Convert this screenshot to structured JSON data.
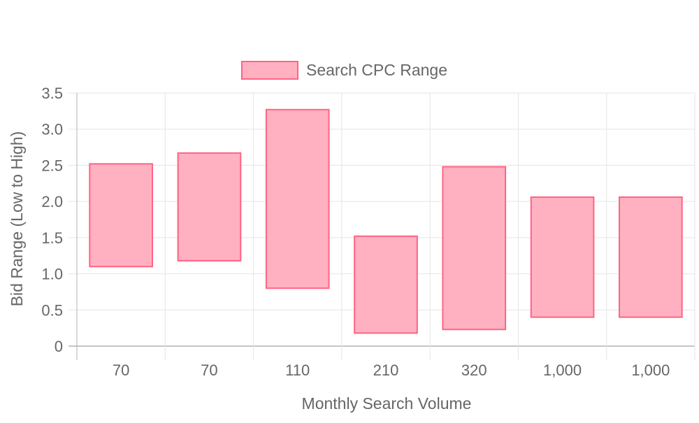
{
  "chart_data": {
    "type": "bar",
    "subtype": "floating-range",
    "legend": {
      "label": "Search CPC Range",
      "position": "top"
    },
    "xlabel": "Monthly Search Volume",
    "ylabel": "Bid Range (Low to High)",
    "categories": [
      "70",
      "70",
      "110",
      "210",
      "320",
      "1,000",
      "1,000"
    ],
    "series": [
      {
        "name": "Search CPC Range",
        "low": [
          1.1,
          1.18,
          0.8,
          0.18,
          0.23,
          0.4,
          0.4
        ],
        "high": [
          2.52,
          2.67,
          3.27,
          1.52,
          2.48,
          2.06,
          2.06
        ]
      }
    ],
    "ylim": [
      0,
      3.5
    ],
    "yticks": [
      "0",
      "0.5",
      "1.0",
      "1.5",
      "2.0",
      "2.5",
      "3.0",
      "3.5"
    ],
    "grid": true,
    "colors": {
      "bar_fill": "#ffb1c1",
      "bar_stroke": "#ff6384",
      "grid": "#e5e5e5",
      "axis": "#b3b3b3",
      "text": "#666666"
    }
  }
}
